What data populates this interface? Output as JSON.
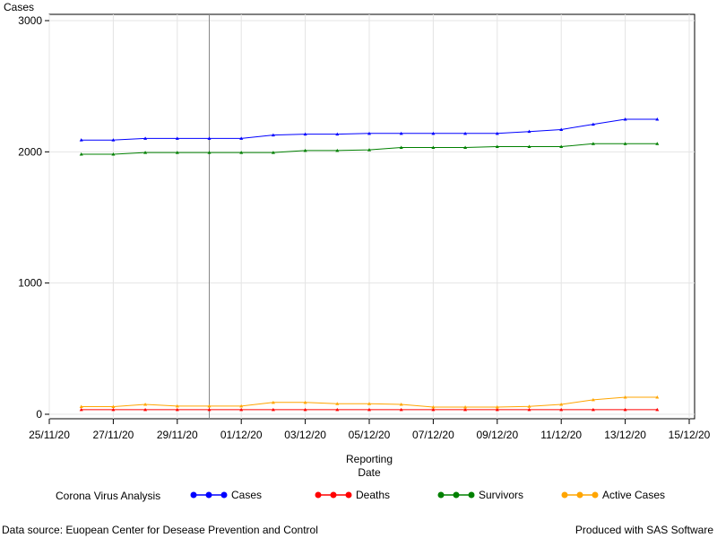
{
  "chart_data": {
    "type": "line",
    "ylabel": "Cases",
    "xlabel_lines": [
      "Reporting",
      "Date"
    ],
    "ylim": [
      0,
      3000
    ],
    "yticks": [
      0,
      1000,
      2000,
      3000
    ],
    "x_tick_labels": [
      "25/11/20",
      "27/11/20",
      "29/11/20",
      "01/12/20",
      "03/12/20",
      "05/12/20",
      "07/12/20",
      "09/12/20",
      "11/12/20",
      "13/12/20",
      "15/12/20"
    ],
    "grid": true,
    "reference_line_x": "30/11/20",
    "legend_title": "Corona Virus Analysis",
    "legend_position": "bottom",
    "x": [
      "26/11/20",
      "27/11/20",
      "28/11/20",
      "29/11/20",
      "30/11/20",
      "01/12/20",
      "02/12/20",
      "03/12/20",
      "04/12/20",
      "05/12/20",
      "06/12/20",
      "07/12/20",
      "08/12/20",
      "09/12/20",
      "10/12/20",
      "11/12/20",
      "12/12/20",
      "13/12/20",
      "14/12/20"
    ],
    "series": [
      {
        "name": "Cases",
        "color": "#0000ff",
        "values": [
          2090,
          2090,
          2102,
          2102,
          2102,
          2102,
          2128,
          2135,
          2135,
          2140,
          2140,
          2140,
          2140,
          2140,
          2155,
          2170,
          2210,
          2248,
          2248
        ]
      },
      {
        "name": "Deaths",
        "color": "#ff0000",
        "values": [
          35,
          35,
          35,
          35,
          35,
          35,
          35,
          35,
          35,
          35,
          35,
          35,
          35,
          35,
          35,
          35,
          35,
          35,
          35
        ]
      },
      {
        "name": "Survivors",
        "color": "#008000",
        "values": [
          1982,
          1982,
          1995,
          1995,
          1995,
          1995,
          1995,
          2010,
          2010,
          2015,
          2033,
          2033,
          2033,
          2040,
          2040,
          2040,
          2062,
          2062,
          2062
        ]
      },
      {
        "name": "Active Cases",
        "color": "#ffa500",
        "values": [
          58,
          58,
          75,
          62,
          62,
          62,
          90,
          90,
          80,
          80,
          75,
          55,
          55,
          55,
          60,
          75,
          110,
          130,
          130
        ]
      }
    ]
  },
  "footer": {
    "left": "Data source: Euopean Center for Desease Prevention and Control",
    "right": "Produced with SAS Software"
  }
}
